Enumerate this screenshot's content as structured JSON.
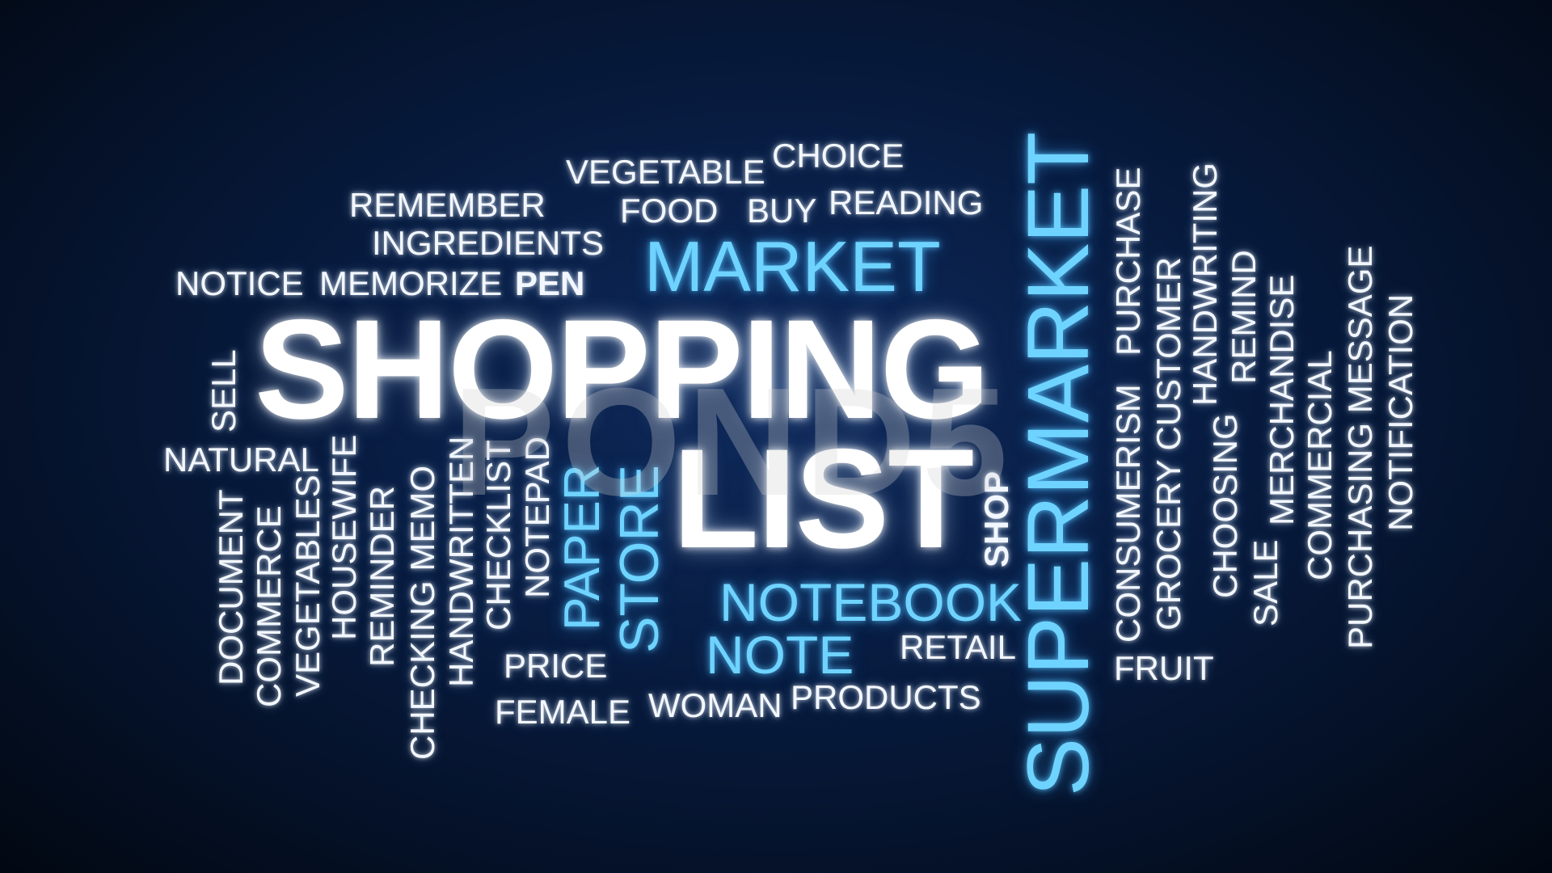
{
  "words": {
    "shopping": "SHOPPING",
    "list": "LIST",
    "supermarket": "SUPERMARKET",
    "market": "MARKET",
    "notebook": "NOTEBOOK",
    "note": "NOTE",
    "store": "STORE",
    "paper": "PAPER",
    "choice": "CHOICE",
    "vegetable": "VEGETABLE",
    "remember": "REMEMBER",
    "food": "FOOD",
    "buy": "BUY",
    "reading": "READING",
    "ingredients": "INGREDIENTS",
    "notice": "NOTICE",
    "memorize": "MEMORIZE",
    "pen": "PEN",
    "sell": "SELL",
    "natural": "NATURAL",
    "document": "DOCUMENT",
    "commerce": "COMMERCE",
    "vegetables": "VEGETABLES",
    "housewife": "HOUSEWIFE",
    "reminder": "REMINDER",
    "checking_memo": "CHECKING MEMO",
    "handwritten": "HANDWRITTEN",
    "checklist": "CHECKLIST",
    "notepad": "NOTEPAD",
    "price": "PRICE",
    "female": "FEMALE",
    "woman": "WOMAN",
    "products": "PRODUCTS",
    "retail": "RETAIL",
    "shop": "SHOP",
    "purchase": "PURCHASE",
    "consumerism": "CONSUMERISM",
    "grocery_customer": "GROCERY CUSTOMER",
    "handwriting": "HANDWRITING",
    "choosing": "CHOOSING",
    "remind": "REMIND",
    "sale": "SALE",
    "merchandise": "MERCHANDISE",
    "commercial": "COMMERCIAL",
    "purchasing_message": "PURCHASING MESSAGE",
    "notification": "NOTIFICATION",
    "fruit": "FRUIT"
  },
  "watermark": "POND5",
  "colors": {
    "background_center": "#0e2a5c",
    "background_edge": "#020812",
    "white_text": "#f2f7ff",
    "blue_text": "#6fd3ff"
  }
}
